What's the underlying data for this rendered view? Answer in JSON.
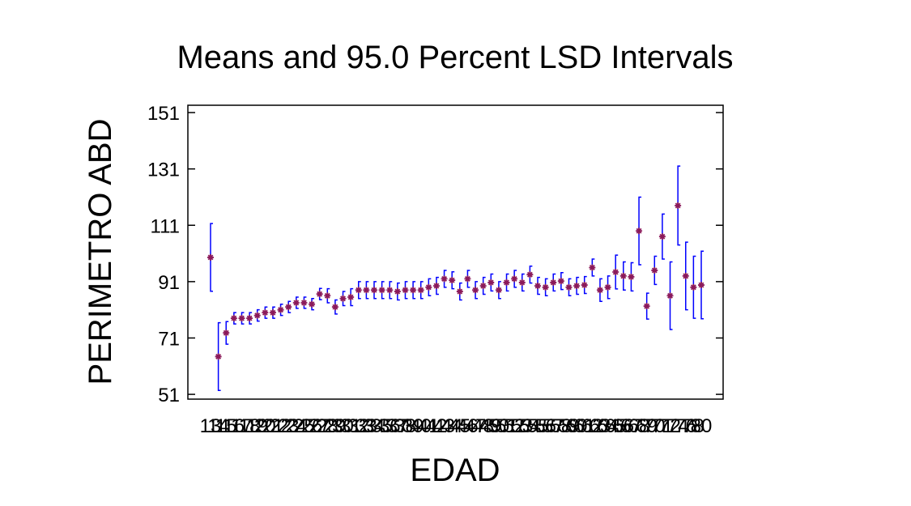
{
  "chart_data": {
    "type": "errorbar",
    "title": "Means and 95.0 Percent LSD Intervals",
    "x_label": "EDAD",
    "y_label": "PERIMETRO ABD",
    "categories": [
      "13",
      "14",
      "15",
      "16",
      "17",
      "18",
      "19",
      "20",
      "21",
      "22",
      "23",
      "24",
      "25",
      "26",
      "27",
      "28",
      "29",
      "30",
      "31",
      "32",
      "33",
      "34",
      "35",
      "36",
      "37",
      "38",
      "39",
      "40",
      "41",
      "42",
      "43",
      "44",
      "45",
      "46",
      "47",
      "48",
      "49",
      "50",
      "51",
      "52",
      "53",
      "54",
      "55",
      "56",
      "57",
      "58",
      "59",
      "60",
      "61",
      "62",
      "63",
      "64",
      "65",
      "66",
      "67",
      "68",
      "69",
      "70",
      "71",
      "72",
      "74",
      "76",
      "78",
      "80"
    ],
    "series": [
      {
        "marker_color": "#8b1a5a",
        "bar_color": "#0000ff",
        "values": [
          99.6,
          64.4,
          72.8,
          78,
          78,
          78,
          79,
          80,
          80,
          81,
          82,
          83.5,
          83.5,
          83,
          86.6,
          86,
          82,
          85,
          85.5,
          88,
          88,
          88,
          88,
          88,
          87.5,
          88,
          88,
          88,
          89,
          89.5,
          92,
          91.5,
          87.5,
          92,
          88,
          89.5,
          90.7,
          88,
          90.7,
          92,
          90.7,
          93.5,
          89.5,
          89,
          90.7,
          91.2,
          89,
          89.5,
          89.8,
          96,
          88,
          89,
          94.4,
          93,
          92.7,
          109,
          82.3,
          95,
          107,
          86,
          118,
          93,
          89,
          89.8
        ],
        "errors": [
          12,
          12,
          4,
          2,
          2,
          2,
          2,
          2,
          2,
          2,
          2,
          2,
          2,
          2,
          2,
          2.5,
          2.5,
          2.5,
          3,
          3,
          3,
          3,
          3,
          3,
          3,
          3,
          3,
          3,
          3,
          3,
          3,
          3,
          3,
          3,
          3,
          3,
          3,
          3,
          3,
          3,
          3,
          3,
          3,
          3,
          3,
          3,
          3,
          3,
          3,
          3,
          4,
          4,
          6,
          5,
          5,
          12,
          4.6,
          5,
          8,
          12,
          14,
          12,
          11,
          12
        ]
      }
    ],
    "ylim": [
      49.3,
      153.6
    ],
    "yticks": [
      51,
      71,
      91,
      111,
      131,
      151
    ]
  }
}
